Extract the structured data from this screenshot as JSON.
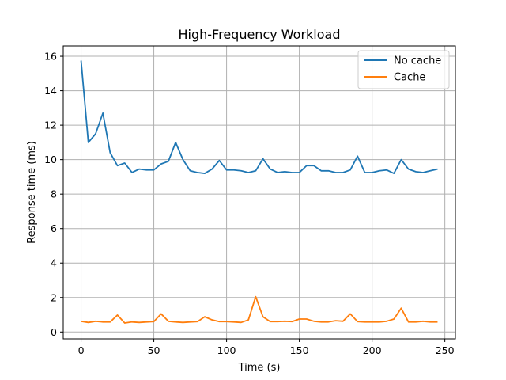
{
  "chart_data": {
    "type": "line",
    "title": "High-Frequency Workload",
    "xlabel": "Time (s)",
    "ylabel": "Response time (ms)",
    "xlim": [
      -12.25,
      257.25
    ],
    "ylim": [
      -0.4,
      16.6
    ],
    "xticks": [
      0,
      50,
      100,
      150,
      200,
      250
    ],
    "yticks": [
      0,
      2,
      4,
      6,
      8,
      10,
      12,
      14,
      16
    ],
    "grid": true,
    "legend_position": "top-right",
    "x": [
      0,
      5,
      10,
      15,
      20,
      25,
      30,
      35,
      40,
      45,
      50,
      55,
      60,
      65,
      70,
      75,
      80,
      85,
      90,
      95,
      100,
      105,
      110,
      115,
      120,
      125,
      130,
      135,
      140,
      145,
      150,
      155,
      160,
      165,
      170,
      175,
      180,
      185,
      190,
      195,
      200,
      205,
      210,
      215,
      220,
      225,
      230,
      235,
      240,
      245
    ],
    "series": [
      {
        "name": "No cache",
        "color": "#1f77b4",
        "values": [
          15.75,
          11.0,
          11.5,
          12.7,
          10.4,
          9.65,
          9.8,
          9.25,
          9.45,
          9.4,
          9.4,
          9.75,
          9.9,
          11.0,
          10.0,
          9.35,
          9.25,
          9.2,
          9.45,
          9.95,
          9.4,
          9.4,
          9.35,
          9.25,
          9.35,
          10.05,
          9.45,
          9.25,
          9.3,
          9.25,
          9.25,
          9.65,
          9.65,
          9.35,
          9.35,
          9.25,
          9.25,
          9.4,
          10.2,
          9.25,
          9.25,
          9.35,
          9.4,
          9.2,
          10.0,
          9.45,
          9.3,
          9.25,
          9.35,
          9.45
        ]
      },
      {
        "name": "Cache",
        "color": "#ff7f0e",
        "values": [
          0.62,
          0.55,
          0.62,
          0.58,
          0.58,
          0.98,
          0.52,
          0.58,
          0.55,
          0.58,
          0.6,
          1.05,
          0.62,
          0.58,
          0.55,
          0.58,
          0.6,
          0.88,
          0.7,
          0.6,
          0.6,
          0.58,
          0.55,
          0.7,
          2.05,
          0.88,
          0.6,
          0.6,
          0.62,
          0.6,
          0.75,
          0.75,
          0.62,
          0.58,
          0.58,
          0.65,
          0.62,
          1.05,
          0.6,
          0.58,
          0.58,
          0.58,
          0.62,
          0.75,
          1.38,
          0.58,
          0.58,
          0.62,
          0.58,
          0.58
        ]
      }
    ]
  }
}
